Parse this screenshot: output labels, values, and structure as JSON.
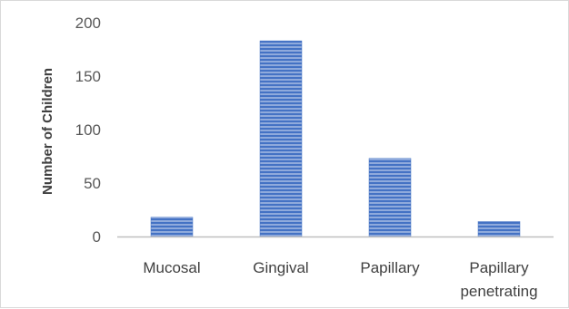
{
  "chart_data": {
    "type": "bar",
    "categories": [
      "Mucosal",
      "Gingival",
      "Papillary",
      "Papillary penetrating"
    ],
    "category_lines": [
      [
        "Mucosal"
      ],
      [
        "Gingival"
      ],
      [
        "Papillary"
      ],
      [
        "Papillary",
        "penetrating"
      ]
    ],
    "values": [
      18,
      183,
      73,
      14
    ],
    "ylabel": "Number of Children",
    "ylim": [
      0,
      200
    ],
    "yticks": [
      0,
      50,
      100,
      150,
      200
    ],
    "grid": false,
    "legend": "none",
    "bar_color": "#4472c4",
    "bar_color_light": "#8faadc",
    "axis_color": "#bfbfbf"
  }
}
